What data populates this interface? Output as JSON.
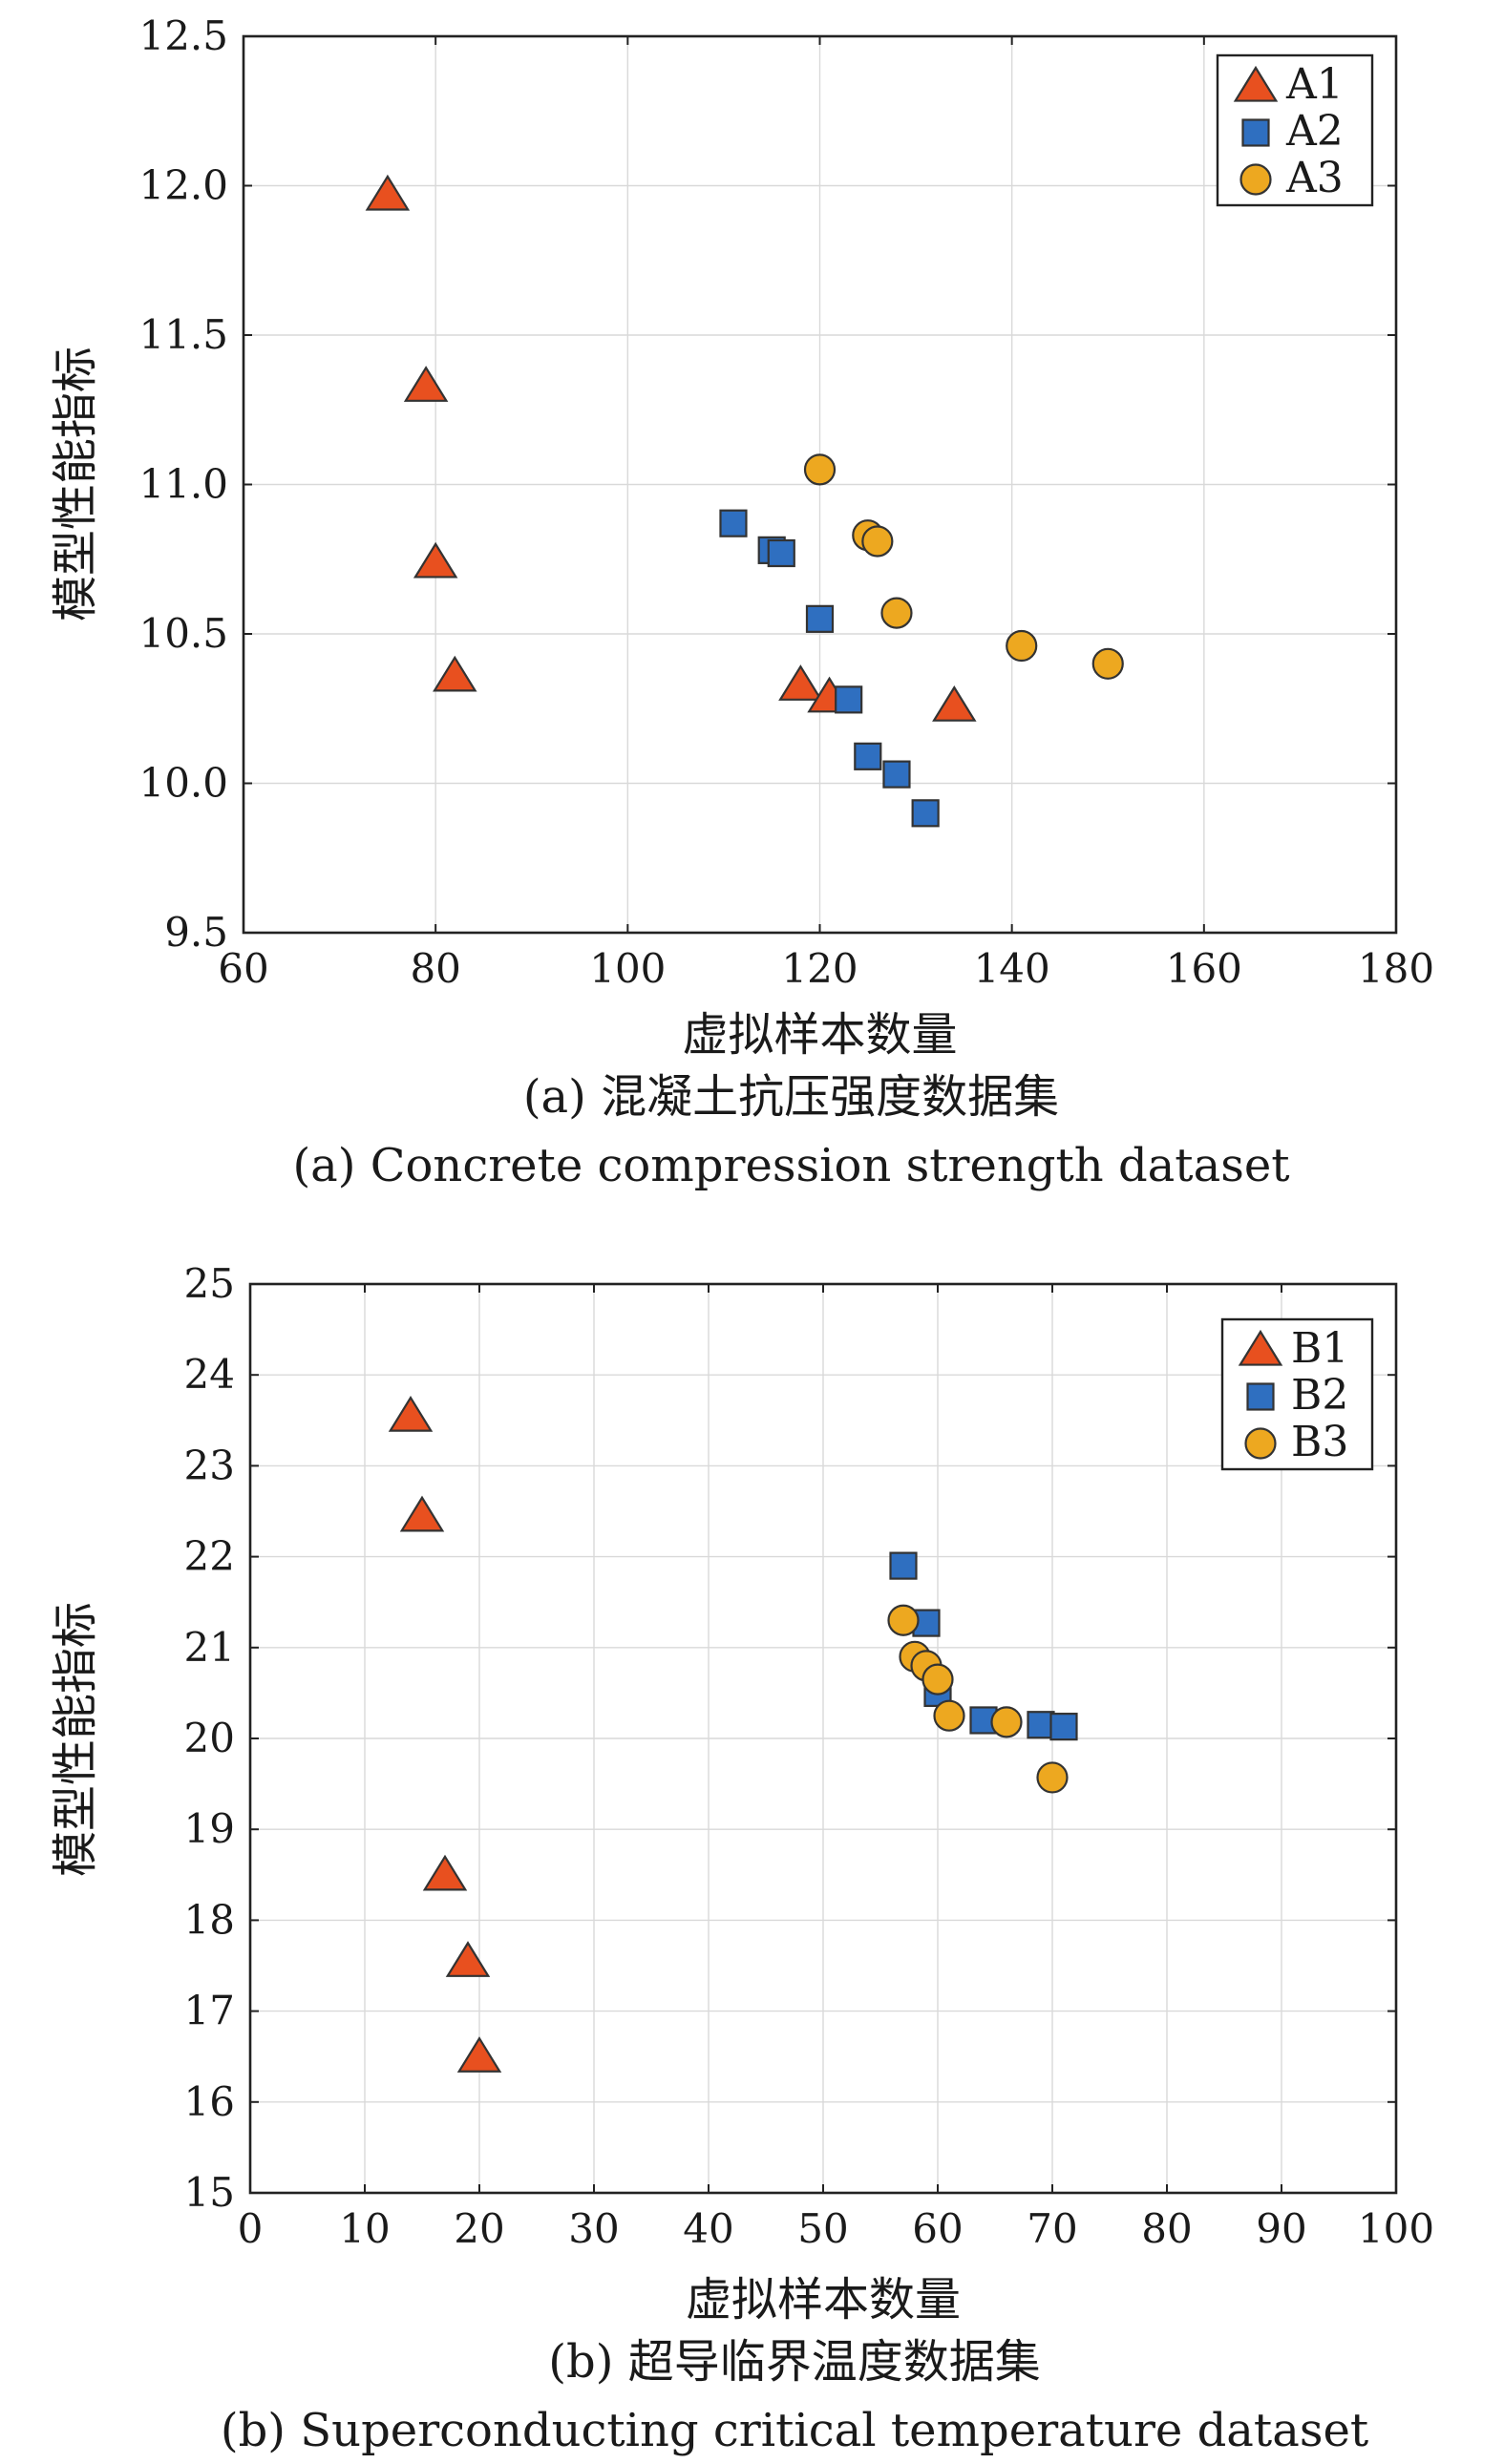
{
  "chart_data": [
    {
      "type": "scatter",
      "xlabel": "虚拟样本数量",
      "ylabel": "模型性能指标",
      "caption_zh": "(a) 混凝土抗压强度数据集",
      "caption_en": "(a) Concrete compression strength dataset",
      "xlim": [
        60,
        180
      ],
      "ylim": [
        9.5,
        12.5
      ],
      "xticks": [
        60,
        80,
        100,
        120,
        140,
        160,
        180
      ],
      "yticks": [
        9.5,
        10.0,
        10.5,
        11.0,
        11.5,
        12.0,
        12.5
      ],
      "ytick_labels": [
        "9.5",
        "10.0",
        "10.5",
        "11.0",
        "11.5",
        "12.0",
        "12.5"
      ],
      "grid": true,
      "legend_position": "top-right",
      "series": [
        {
          "name": "A1",
          "marker": "triangle",
          "color": "#e8501f",
          "points": [
            [
              75,
              11.97
            ],
            [
              79,
              11.33
            ],
            [
              80,
              10.74
            ],
            [
              82,
              10.36
            ],
            [
              118,
              10.33
            ],
            [
              121,
              10.29
            ],
            [
              134,
              10.26
            ]
          ]
        },
        {
          "name": "A2",
          "marker": "square",
          "color": "#2f6fc0",
          "points": [
            [
              111,
              10.87
            ],
            [
              115,
              10.78
            ],
            [
              116,
              10.77
            ],
            [
              120,
              10.55
            ],
            [
              123,
              10.28
            ],
            [
              125,
              10.09
            ],
            [
              128,
              10.03
            ],
            [
              131,
              9.9
            ]
          ]
        },
        {
          "name": "A3",
          "marker": "circle",
          "color": "#eda820",
          "points": [
            [
              120,
              11.05
            ],
            [
              125,
              10.83
            ],
            [
              126,
              10.81
            ],
            [
              128,
              10.57
            ],
            [
              141,
              10.46
            ],
            [
              150,
              10.4
            ]
          ]
        }
      ]
    },
    {
      "type": "scatter",
      "xlabel": "虚拟样本数量",
      "ylabel": "模型性能指标",
      "caption_zh": "(b) 超导临界温度数据集",
      "caption_en": "(b) Superconducting critical temperature dataset",
      "xlim": [
        0,
        100
      ],
      "ylim": [
        15,
        25
      ],
      "xticks": [
        0,
        10,
        20,
        30,
        40,
        50,
        60,
        70,
        80,
        90,
        100
      ],
      "yticks": [
        15,
        16,
        17,
        18,
        19,
        20,
        21,
        22,
        23,
        24,
        25
      ],
      "ytick_labels": [
        "15",
        "16",
        "17",
        "18",
        "19",
        "20",
        "21",
        "22",
        "23",
        "24",
        "25"
      ],
      "grid": true,
      "legend_position": "top-right",
      "series": [
        {
          "name": "B1",
          "marker": "triangle",
          "color": "#e8501f",
          "points": [
            [
              14,
              23.55
            ],
            [
              15,
              22.45
            ],
            [
              17,
              18.5
            ],
            [
              19,
              17.55
            ],
            [
              20,
              16.5
            ]
          ]
        },
        {
          "name": "B2",
          "marker": "square",
          "color": "#2f6fc0",
          "points": [
            [
              57,
              21.9
            ],
            [
              59,
              21.27
            ],
            [
              60,
              20.5
            ],
            [
              64,
              20.2
            ],
            [
              69,
              20.15
            ],
            [
              71,
              20.13
            ]
          ]
        },
        {
          "name": "B3",
          "marker": "circle",
          "color": "#eda820",
          "points": [
            [
              57,
              21.3
            ],
            [
              58,
              20.9
            ],
            [
              59,
              20.8
            ],
            [
              60,
              20.65
            ],
            [
              61,
              20.25
            ],
            [
              66,
              20.18
            ],
            [
              70,
              19.57
            ]
          ]
        }
      ]
    }
  ]
}
